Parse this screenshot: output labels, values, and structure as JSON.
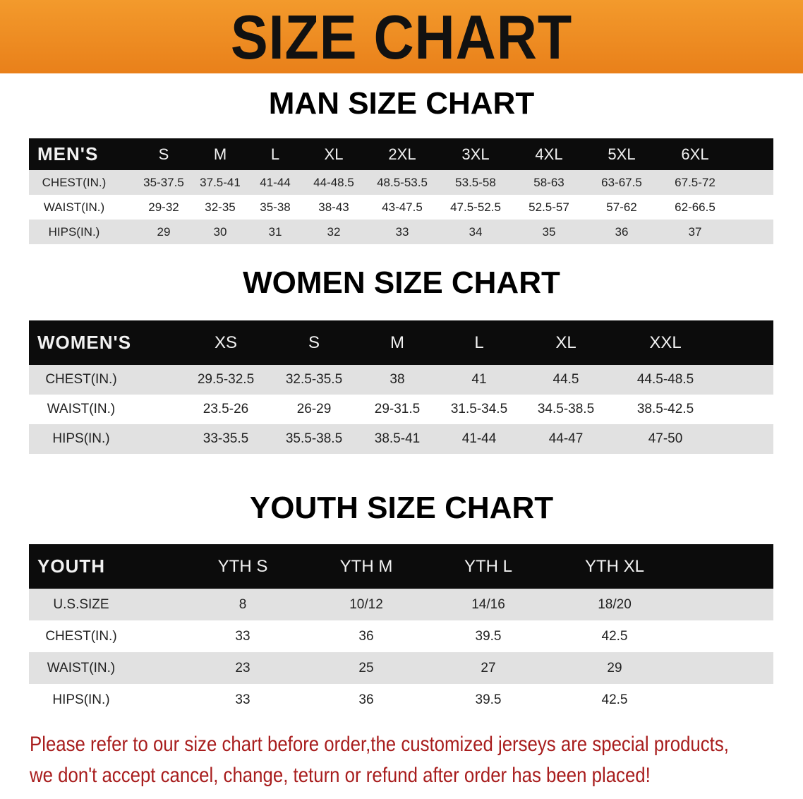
{
  "banner": {
    "title": "SIZE CHART",
    "color": "#ee8a22"
  },
  "men": {
    "title": "MAN SIZE CHART",
    "header": [
      "MEN'S",
      "S",
      "M",
      "L",
      "XL",
      "2XL",
      "3XL",
      "4XL",
      "5XL",
      "6XL"
    ],
    "rows": [
      [
        "CHEST(IN.)",
        "35-37.5",
        "37.5-41",
        "41-44",
        "44-48.5",
        "48.5-53.5",
        "53.5-58",
        "58-63",
        "63-67.5",
        "67.5-72"
      ],
      [
        "WAIST(IN.)",
        "29-32",
        "32-35",
        "35-38",
        "38-43",
        "43-47.5",
        "47.5-52.5",
        "52.5-57",
        "57-62",
        "62-66.5"
      ],
      [
        "HIPS(IN.)",
        "29",
        "30",
        "31",
        "32",
        "33",
        "34",
        "35",
        "36",
        "37"
      ]
    ]
  },
  "women": {
    "title": "WOMEN SIZE CHART",
    "header": [
      "WOMEN'S",
      "XS",
      "S",
      "M",
      "L",
      "XL",
      "XXL"
    ],
    "rows": [
      [
        "CHEST(IN.)",
        "29.5-32.5",
        "32.5-35.5",
        "38",
        "41",
        "44.5",
        "44.5-48.5"
      ],
      [
        "WAIST(IN.)",
        "23.5-26",
        "26-29",
        "29-31.5",
        "31.5-34.5",
        "34.5-38.5",
        "38.5-42.5"
      ],
      [
        "HIPS(IN.)",
        "33-35.5",
        "35.5-38.5",
        "38.5-41",
        "41-44",
        "44-47",
        "47-50"
      ]
    ]
  },
  "youth": {
    "title": "YOUTH SIZE CHART",
    "header": [
      "YOUTH",
      "YTH S",
      "YTH M",
      "YTH L",
      "YTH XL"
    ],
    "rows": [
      [
        "U.S.SIZE",
        "8",
        "10/12",
        "14/16",
        "18/20"
      ],
      [
        "CHEST(IN.)",
        "33",
        "36",
        "39.5",
        "42.5"
      ],
      [
        "WAIST(IN.)",
        "23",
        "25",
        "27",
        "29"
      ],
      [
        "HIPS(IN.)",
        "33",
        "36",
        "39.5",
        "42.5"
      ]
    ]
  },
  "notice": {
    "line1": "Please refer to our size chart before order,the customized jerseys are special products,",
    "line2": "we don't accept cancel, change, teturn or refund after order has been placed!",
    "color": "#a81d1d"
  }
}
